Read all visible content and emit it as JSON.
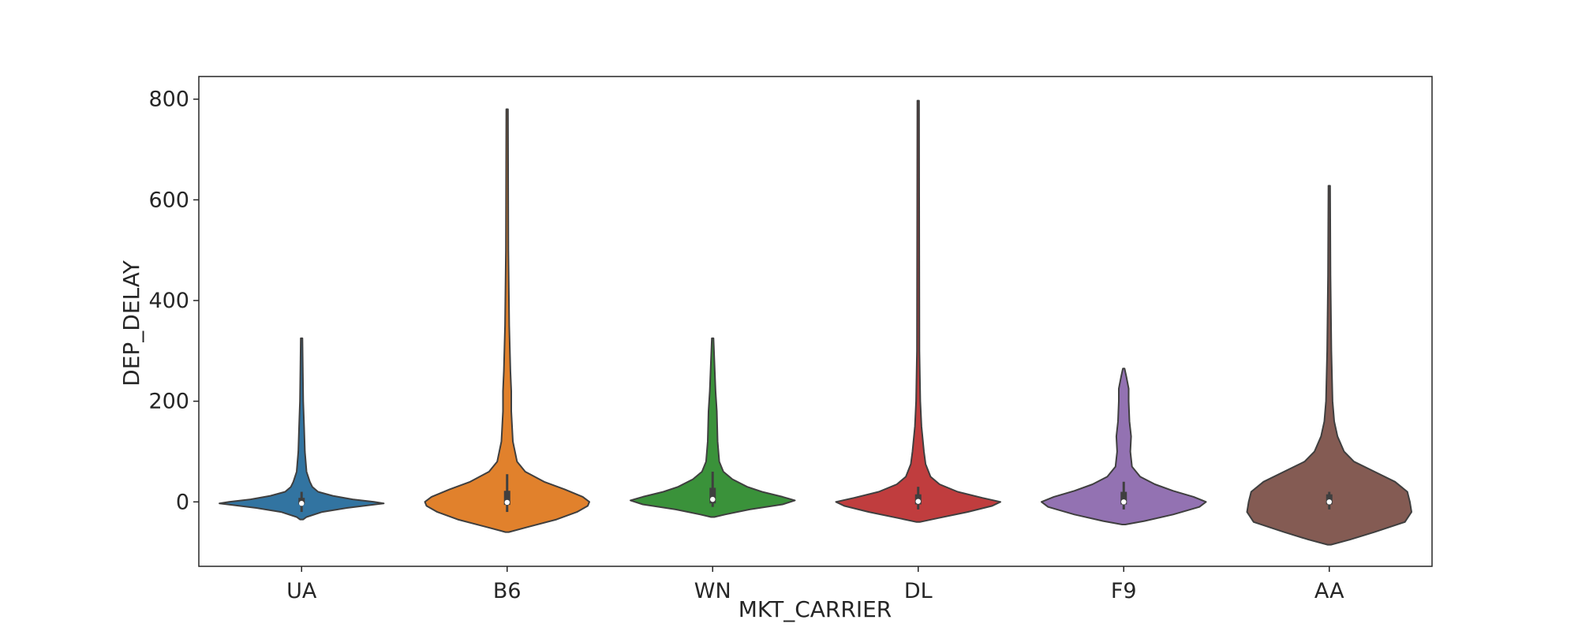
{
  "chart_data": {
    "type": "violin",
    "xlabel": "MKT_CARRIER",
    "ylabel": "DEP_DELAY",
    "ylim": [
      -128,
      845
    ],
    "yticks": [
      0,
      200,
      400,
      600,
      800
    ],
    "grid": false,
    "legend": "none",
    "categories": [
      "UA",
      "B6",
      "WN",
      "DL",
      "F9",
      "AA"
    ],
    "colors": [
      "#3274a1",
      "#e1812c",
      "#3a923a",
      "#c03d3e",
      "#9372b2",
      "#845b53"
    ],
    "violins": [
      {
        "category": "UA",
        "min": -35,
        "max": 325,
        "box": {
          "q1": -5,
          "median": -3,
          "q3": 8,
          "whisker_low": -20,
          "whisker_high": 20
        },
        "profile": [
          [
            -35,
            0.02
          ],
          [
            -30,
            0.06
          ],
          [
            -20,
            0.25
          ],
          [
            -12,
            0.55
          ],
          [
            -6,
            0.85
          ],
          [
            -3,
            1.0
          ],
          [
            0,
            0.88
          ],
          [
            5,
            0.62
          ],
          [
            12,
            0.38
          ],
          [
            20,
            0.2
          ],
          [
            30,
            0.13
          ],
          [
            40,
            0.1
          ],
          [
            60,
            0.06
          ],
          [
            100,
            0.04
          ],
          [
            150,
            0.03
          ],
          [
            200,
            0.02
          ],
          [
            260,
            0.015
          ],
          [
            325,
            0.01
          ]
        ]
      },
      {
        "category": "B6",
        "min": -60,
        "max": 780,
        "box": {
          "q1": -6,
          "median": -1,
          "q3": 22,
          "whisker_low": -20,
          "whisker_high": 55
        },
        "profile": [
          [
            -60,
            0.02
          ],
          [
            -50,
            0.25
          ],
          [
            -35,
            0.6
          ],
          [
            -20,
            0.85
          ],
          [
            -8,
            0.98
          ],
          [
            0,
            1.0
          ],
          [
            10,
            0.92
          ],
          [
            25,
            0.7
          ],
          [
            40,
            0.45
          ],
          [
            60,
            0.22
          ],
          [
            80,
            0.12
          ],
          [
            120,
            0.07
          ],
          [
            180,
            0.05
          ],
          [
            220,
            0.05
          ],
          [
            260,
            0.04
          ],
          [
            350,
            0.025
          ],
          [
            500,
            0.015
          ],
          [
            780,
            0.01
          ]
        ]
      },
      {
        "category": "WN",
        "min": -30,
        "max": 325,
        "box": {
          "q1": -3,
          "median": 5,
          "q3": 28,
          "whisker_low": -10,
          "whisker_high": 60
        },
        "profile": [
          [
            -30,
            0.02
          ],
          [
            -25,
            0.15
          ],
          [
            -15,
            0.45
          ],
          [
            -5,
            0.85
          ],
          [
            3,
            1.0
          ],
          [
            10,
            0.85
          ],
          [
            20,
            0.6
          ],
          [
            30,
            0.42
          ],
          [
            45,
            0.24
          ],
          [
            60,
            0.13
          ],
          [
            80,
            0.08
          ],
          [
            120,
            0.06
          ],
          [
            180,
            0.05
          ],
          [
            220,
            0.035
          ],
          [
            260,
            0.025
          ],
          [
            325,
            0.01
          ]
        ]
      },
      {
        "category": "DL",
        "min": -40,
        "max": 797,
        "box": {
          "q1": -5,
          "median": 1,
          "q3": 15,
          "whisker_low": -15,
          "whisker_high": 30
        },
        "profile": [
          [
            -40,
            0.02
          ],
          [
            -32,
            0.25
          ],
          [
            -20,
            0.6
          ],
          [
            -8,
            0.9
          ],
          [
            0,
            1.0
          ],
          [
            8,
            0.78
          ],
          [
            20,
            0.48
          ],
          [
            35,
            0.26
          ],
          [
            50,
            0.15
          ],
          [
            75,
            0.09
          ],
          [
            100,
            0.07
          ],
          [
            150,
            0.04
          ],
          [
            200,
            0.025
          ],
          [
            300,
            0.015
          ],
          [
            797,
            0.01
          ]
        ]
      },
      {
        "category": "F9",
        "min": -45,
        "max": 265,
        "box": {
          "q1": -5,
          "median": 0,
          "q3": 20,
          "whisker_low": -15,
          "whisker_high": 40
        },
        "profile": [
          [
            -45,
            0.02
          ],
          [
            -38,
            0.25
          ],
          [
            -25,
            0.6
          ],
          [
            -10,
            0.92
          ],
          [
            0,
            1.0
          ],
          [
            10,
            0.85
          ],
          [
            22,
            0.6
          ],
          [
            35,
            0.38
          ],
          [
            50,
            0.2
          ],
          [
            70,
            0.1
          ],
          [
            100,
            0.08
          ],
          [
            130,
            0.09
          ],
          [
            160,
            0.07
          ],
          [
            200,
            0.06
          ],
          [
            225,
            0.06
          ],
          [
            250,
            0.03
          ],
          [
            265,
            0.01
          ]
        ]
      },
      {
        "category": "AA",
        "min": -85,
        "max": 628,
        "box": {
          "q1": -5,
          "median": 0,
          "q3": 15,
          "whisker_low": -15,
          "whisker_high": 20
        },
        "profile": [
          [
            -85,
            0.02
          ],
          [
            -75,
            0.25
          ],
          [
            -60,
            0.55
          ],
          [
            -40,
            0.92
          ],
          [
            -20,
            1.0
          ],
          [
            0,
            0.98
          ],
          [
            20,
            0.95
          ],
          [
            40,
            0.8
          ],
          [
            60,
            0.55
          ],
          [
            80,
            0.3
          ],
          [
            100,
            0.18
          ],
          [
            130,
            0.1
          ],
          [
            160,
            0.06
          ],
          [
            200,
            0.04
          ],
          [
            300,
            0.025
          ],
          [
            450,
            0.015
          ],
          [
            628,
            0.01
          ]
        ]
      }
    ]
  }
}
